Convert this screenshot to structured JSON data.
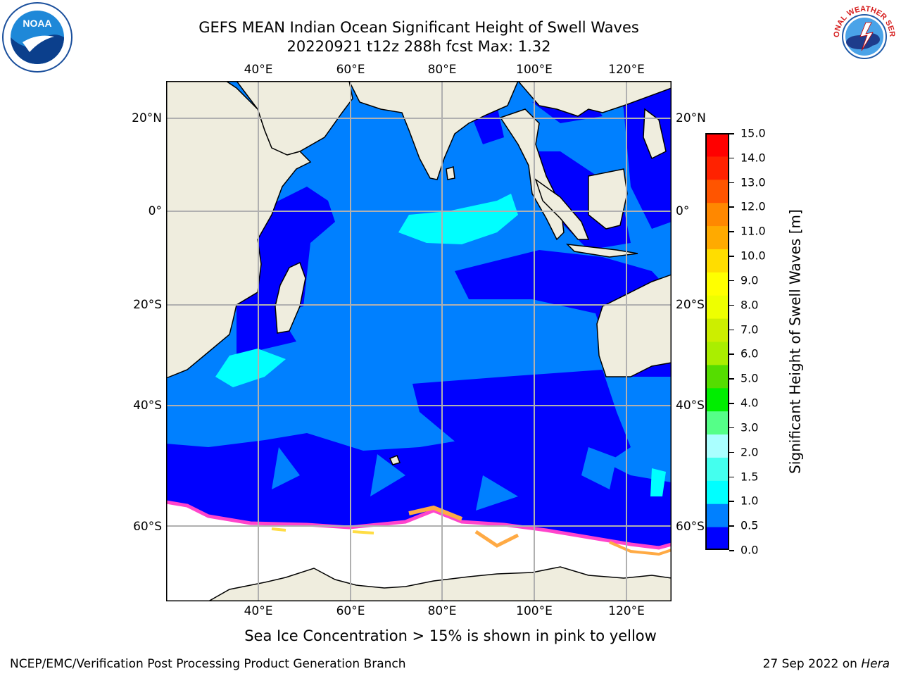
{
  "title": {
    "line1": "GEFS MEAN Indian Ocean Significant Height of Swell Waves",
    "line2": "20220921 t12z 288h fcst   Max: 1.32"
  },
  "map": {
    "lon_labels": [
      "40°E",
      "60°E",
      "80°E",
      "100°E",
      "120°E"
    ],
    "lat_labels": [
      "20°N",
      "0°",
      "20°S",
      "40°S",
      "60°S"
    ],
    "extent": {
      "lon": [
        20,
        130
      ],
      "lat": [
        -72,
        28
      ]
    },
    "land_color": "#efedde",
    "ice_colors": [
      "#ff44cc",
      "#ffaa44",
      "#ffdd44"
    ]
  },
  "colorbar": {
    "label": "Significant Height of Swell Waves [m]",
    "ticks": [
      "0.0",
      "0.5",
      "1.0",
      "1.5",
      "2.0",
      "3.0",
      "4.0",
      "5.0",
      "6.0",
      "7.0",
      "8.0",
      "9.0",
      "10.0",
      "11.0",
      "12.0",
      "13.0",
      "14.0",
      "15.0"
    ],
    "colors": [
      "#0000ff",
      "#0080ff",
      "#00ffff",
      "#44ffee",
      "#aaffff",
      "#55ff88",
      "#00ee00",
      "#55dd00",
      "#aaee00",
      "#ccee00",
      "#eeff00",
      "#ffff00",
      "#ffdd00",
      "#ffaa00",
      "#ff8800",
      "#ff5500",
      "#ff2200",
      "#ff0000"
    ]
  },
  "wave_colors": {
    "low": "#0000ff",
    "mid": "#0080ff",
    "high": "#00ffff"
  },
  "logos": {
    "left": "NOAA",
    "right": "NATIONAL WEATHER SERVICE"
  },
  "subtitle": "Sea Ice Concentration > 15% is shown in pink to yellow",
  "footer": {
    "left": "NCEP/EMC/Verification Post Processing Product Generation Branch",
    "right_date": "27 Sep 2022 on ",
    "right_machine": "Hera"
  }
}
